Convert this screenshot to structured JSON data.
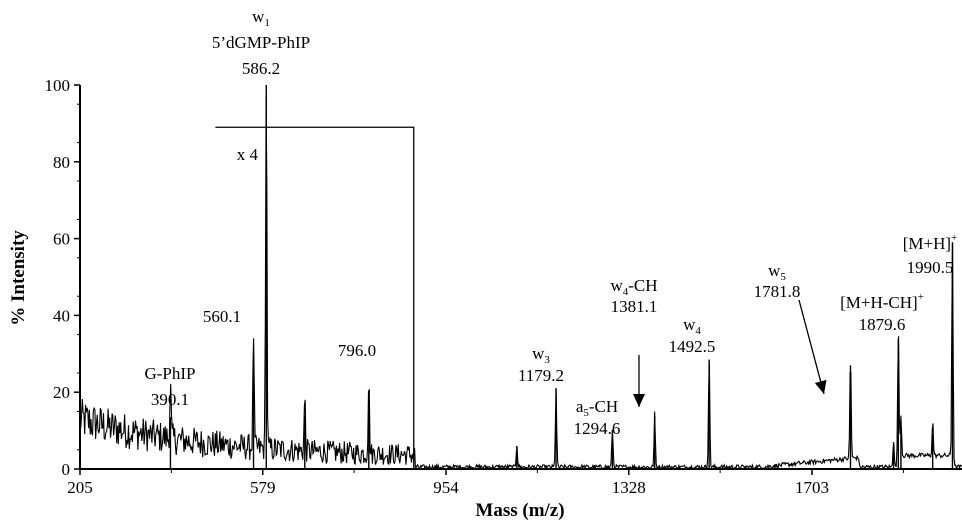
{
  "chart_data": {
    "type": "line",
    "xlabel": "Mass (m/z)",
    "ylabel": "% Intensity",
    "xlim": [
      205,
      2010
    ],
    "ylim": [
      0,
      100
    ],
    "x_ticks": [
      205,
      579,
      954,
      1328,
      1703
    ],
    "y_ticks": [
      0,
      20,
      40,
      60,
      80,
      100
    ],
    "zoom_region": {
      "label": "x 4",
      "x_start": 482,
      "x_end": 888,
      "y_level": 89
    },
    "peaks": [
      {
        "x": 390.1,
        "y": 13.5
      },
      {
        "x": 560.1,
        "y": 30
      },
      {
        "x": 586.2,
        "y": 100
      },
      {
        "x": 665.0,
        "y": 14
      },
      {
        "x": 796.0,
        "y": 19.5
      },
      {
        "x": 1099.0,
        "y": 6
      },
      {
        "x": 1179.2,
        "y": 21
      },
      {
        "x": 1294.6,
        "y": 10
      },
      {
        "x": 1381.1,
        "y": 14
      },
      {
        "x": 1492.5,
        "y": 28.5
      },
      {
        "x": 1781.8,
        "y": 27
      },
      {
        "x": 1870.0,
        "y": 7
      },
      {
        "x": 1879.6,
        "y": 34
      },
      {
        "x": 1885.0,
        "y": 11
      },
      {
        "x": 1950.0,
        "y": 9
      },
      {
        "x": 1990.5,
        "y": 59
      }
    ],
    "annotations": [
      {
        "id": "w1",
        "main": "w",
        "sub": "1",
        "sup": "",
        "tail": "",
        "line2": "5’dGMP-PhIP",
        "line3": "586.2"
      },
      {
        "id": "gphip",
        "main": "G-PhIP",
        "sub": "",
        "sup": "",
        "tail": "",
        "line2": "390.1",
        "line3": ""
      },
      {
        "id": "p560",
        "main": "560.1",
        "sub": "",
        "sup": "",
        "tail": "",
        "line2": "",
        "line3": ""
      },
      {
        "id": "p796",
        "main": "796.0",
        "sub": "",
        "sup": "",
        "tail": "",
        "line2": "",
        "line3": ""
      },
      {
        "id": "w3",
        "main": "w",
        "sub": "3",
        "sup": "",
        "tail": "",
        "line2": "1179.2",
        "line3": ""
      },
      {
        "id": "a5ch",
        "main": "a",
        "sub": "5",
        "sup": "",
        "tail": "-CH",
        "line2": "1294.6",
        "line3": ""
      },
      {
        "id": "w4ch",
        "main": "w",
        "sub": "4",
        "sup": "",
        "tail": "-CH",
        "line2": "1381.1",
        "line3": ""
      },
      {
        "id": "w4",
        "main": "w",
        "sub": "4",
        "sup": "",
        "tail": "",
        "line2": "1492.5",
        "line3": ""
      },
      {
        "id": "w5",
        "main": "w",
        "sub": "5",
        "sup": "",
        "tail": "",
        "line2": "1781.8",
        "line3": ""
      },
      {
        "id": "mhch",
        "main": "[M+H-CH]",
        "sub": "",
        "sup": "+",
        "tail": "",
        "line2": "1879.6",
        "line3": ""
      },
      {
        "id": "mh",
        "main": "[M+H]",
        "sub": "",
        "sup": "+",
        "tail": "",
        "line2": "1990.5",
        "line3": ""
      }
    ],
    "grid": false,
    "legend": "none"
  }
}
